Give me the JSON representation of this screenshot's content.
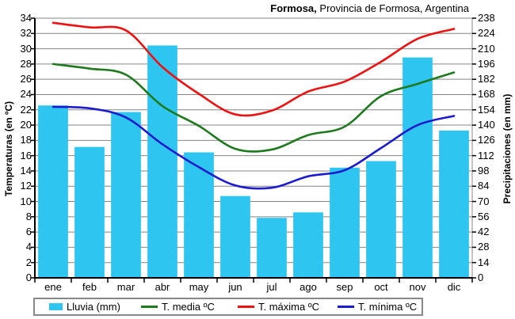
{
  "title": {
    "bold": "Formosa,",
    "rest": " Provincia de Formosa, Argentina"
  },
  "chart_data": {
    "type": "bar",
    "subtype": "combo-bar-lines-climograph",
    "categories": [
      "ene",
      "feb",
      "mar",
      "abr",
      "may",
      "jun",
      "jul",
      "ago",
      "sep",
      "oct",
      "nov",
      "dic"
    ],
    "series": [
      {
        "name": "Lluvia (mm)",
        "type": "bar",
        "axis": "right",
        "color": "#2EC6F0",
        "values": [
          158,
          120,
          152,
          213,
          115,
          75,
          55,
          60,
          101,
          107,
          202,
          135
        ]
      },
      {
        "name": "T. media ºC",
        "type": "line",
        "axis": "left",
        "color": "#1F7A1F",
        "values": [
          28.0,
          27.4,
          26.6,
          22.5,
          19.9,
          16.9,
          16.8,
          18.7,
          19.8,
          23.8,
          25.4,
          26.9
        ]
      },
      {
        "name": "T. máxima ºC",
        "type": "line",
        "axis": "left",
        "color": "#EE1111",
        "values": [
          33.4,
          32.8,
          32.4,
          27.6,
          24.1,
          21.4,
          21.9,
          24.4,
          25.7,
          28.3,
          31.3,
          32.6
        ]
      },
      {
        "name": "T. mínima ºC",
        "type": "line",
        "axis": "left",
        "color": "#1B1BD0",
        "values": [
          22.4,
          22.2,
          21.0,
          17.5,
          14.5,
          12.1,
          11.8,
          13.3,
          14.1,
          17.0,
          20.0,
          21.2
        ]
      }
    ],
    "left_axis": {
      "title": "Temperaturas (en ºC)",
      "min": 0,
      "max": 34,
      "step": 2
    },
    "right_axis": {
      "title": "Precipitaciones (en mm)",
      "min": 0,
      "max": 238,
      "step": 14
    },
    "grid": true,
    "legend_position": "bottom",
    "colors": {
      "gridline": "#848484",
      "axis": "#000000",
      "background": "#ffffff",
      "legend_border": "#888888"
    }
  }
}
